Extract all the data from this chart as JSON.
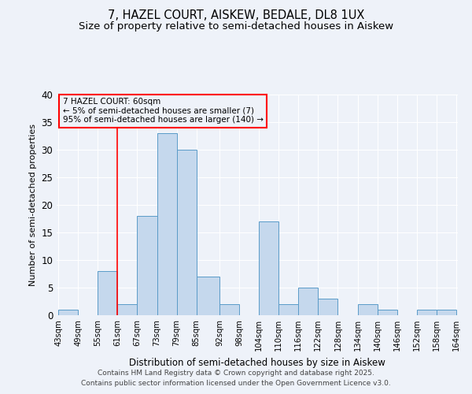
{
  "title1": "7, HAZEL COURT, AISKEW, BEDALE, DL8 1UX",
  "title2": "Size of property relative to semi-detached houses in Aiskew",
  "xlabel": "Distribution of semi-detached houses by size in Aiskew",
  "ylabel": "Number of semi-detached properties",
  "bin_labels": [
    "43sqm",
    "49sqm",
    "55sqm",
    "61sqm",
    "67sqm",
    "73sqm",
    "79sqm",
    "85sqm",
    "92sqm",
    "98sqm",
    "104sqm",
    "110sqm",
    "116sqm",
    "122sqm",
    "128sqm",
    "134sqm",
    "140sqm",
    "146sqm",
    "152sqm",
    "158sqm",
    "164sqm"
  ],
  "bin_edges": [
    43,
    49,
    55,
    61,
    67,
    73,
    79,
    85,
    92,
    98,
    104,
    110,
    116,
    122,
    128,
    134,
    140,
    146,
    152,
    158,
    164
  ],
  "bar_heights": [
    1,
    0,
    8,
    2,
    18,
    33,
    30,
    7,
    2,
    0,
    17,
    2,
    5,
    3,
    0,
    2,
    1,
    0,
    1,
    1
  ],
  "bar_color": "#c5d8ed",
  "bar_edge_color": "#5a9bc8",
  "red_line_x": 61,
  "ylim": [
    0,
    40
  ],
  "yticks": [
    0,
    5,
    10,
    15,
    20,
    25,
    30,
    35,
    40
  ],
  "annotation_title": "7 HAZEL COURT: 60sqm",
  "annotation_line1": "← 5% of semi-detached houses are smaller (7)",
  "annotation_line2": "95% of semi-detached houses are larger (140) →",
  "footer1": "Contains HM Land Registry data © Crown copyright and database right 2025.",
  "footer2": "Contains public sector information licensed under the Open Government Licence v3.0.",
  "bg_color": "#eef2f9",
  "grid_color": "#ffffff",
  "title_fontsize": 10.5,
  "subtitle_fontsize": 9.5
}
